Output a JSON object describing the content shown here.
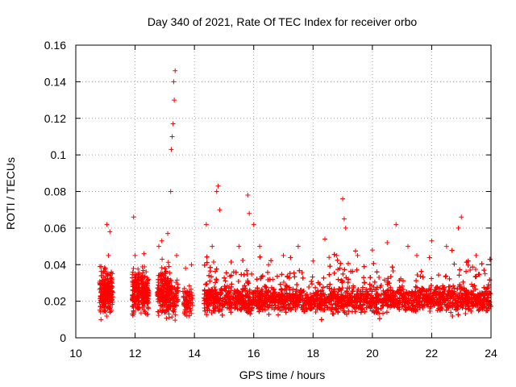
{
  "chart_data": {
    "type": "scatter",
    "title": "Day 340 of 2021, Rate Of TEC Index for receiver orbo",
    "xlabel": "GPS time / hours",
    "ylabel": "ROTI / TECUs",
    "xlim": [
      10,
      24
    ],
    "ylim": [
      0,
      0.16
    ],
    "x_ticks": [
      10,
      12,
      14,
      16,
      18,
      20,
      22,
      24
    ],
    "y_ticks": [
      0,
      0.02,
      0.04,
      0.06,
      0.08,
      0.1,
      0.12,
      0.14,
      0.16
    ],
    "x_tick_labels": [
      "10",
      "12",
      "14",
      "16",
      "18",
      "20",
      "22",
      "24"
    ],
    "y_tick_labels": [
      "0",
      "0.02",
      "0.04",
      "0.06",
      "0.08",
      "0.1",
      "0.12",
      "0.14",
      "0.16"
    ],
    "grid": true,
    "marker": "+",
    "series": [
      {
        "name": "ROTI",
        "color": "#ff0000",
        "description": "dense cloud of points; representative sample listed",
        "points": [
          [
            10.85,
            0.01
          ],
          [
            10.9,
            0.025
          ],
          [
            10.95,
            0.032
          ],
          [
            11.0,
            0.038
          ],
          [
            11.05,
            0.062
          ],
          [
            11.1,
            0.045
          ],
          [
            11.15,
            0.058
          ],
          [
            11.2,
            0.015
          ],
          [
            11.95,
            0.066
          ],
          [
            12.0,
            0.045
          ],
          [
            12.05,
            0.03
          ],
          [
            12.1,
            0.02
          ],
          [
            12.3,
            0.046
          ],
          [
            12.35,
            0.025
          ],
          [
            12.8,
            0.05
          ],
          [
            12.9,
            0.053
          ],
          [
            13.0,
            0.035
          ],
          [
            13.05,
            0.03
          ],
          [
            13.1,
            0.057
          ],
          [
            13.2,
            0.08
          ],
          [
            13.22,
            0.103
          ],
          [
            13.25,
            0.11
          ],
          [
            13.28,
            0.117
          ],
          [
            13.3,
            0.14
          ],
          [
            13.32,
            0.13
          ],
          [
            13.35,
            0.146
          ],
          [
            13.4,
            0.045
          ],
          [
            13.7,
            0.038
          ],
          [
            13.9,
            0.04
          ],
          [
            14.4,
            0.062
          ],
          [
            14.6,
            0.05
          ],
          [
            14.75,
            0.08
          ],
          [
            14.8,
            0.083
          ],
          [
            14.85,
            0.07
          ],
          [
            15.5,
            0.05
          ],
          [
            15.8,
            0.078
          ],
          [
            15.85,
            0.068
          ],
          [
            16.0,
            0.062
          ],
          [
            16.2,
            0.05
          ],
          [
            16.5,
            0.04
          ],
          [
            17.0,
            0.045
          ],
          [
            17.5,
            0.05
          ],
          [
            18.0,
            0.042
          ],
          [
            18.4,
            0.054
          ],
          [
            18.8,
            0.045
          ],
          [
            19.0,
            0.076
          ],
          [
            19.05,
            0.065
          ],
          [
            19.1,
            0.06
          ],
          [
            19.5,
            0.045
          ],
          [
            20.0,
            0.048
          ],
          [
            20.5,
            0.052
          ],
          [
            20.8,
            0.062
          ],
          [
            21.2,
            0.05
          ],
          [
            21.5,
            0.045
          ],
          [
            22.0,
            0.053
          ],
          [
            22.5,
            0.05
          ],
          [
            22.9,
            0.06
          ],
          [
            23.0,
            0.066
          ],
          [
            23.5,
            0.045
          ],
          [
            23.8,
            0.035
          ]
        ]
      }
    ]
  }
}
